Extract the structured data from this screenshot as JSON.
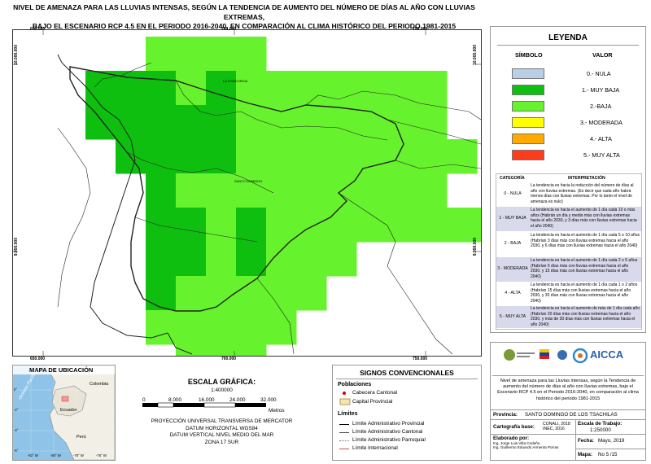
{
  "title": {
    "line1": "NIVEL DE AMENAZA PARA LAS LLUVIAS INTENSAS, SEGÚN LA TENDENCIA DE AUMENTO DEL NÚMERO DE DÍAS AL AÑO CON LLUVIAS EXTREMAS,",
    "line2": "BAJO EL ESCENARIO RCP 4.5 EN EL PERIODO 2016-2040, EN COMPARACIÓN AL CLIMA HISTÓRICO DEL PERIODO 1981-2015"
  },
  "map": {
    "x_ticks": [
      "650.000",
      "700.000",
      "750.000"
    ],
    "y_ticks": [
      "10.000.000",
      "9.950.000"
    ],
    "places": [
      "LA CONCORDIA",
      "SANTO DOMINGO"
    ],
    "colors": {
      "muy_baja": "#0fbf0f",
      "baja": "#66f22c",
      "boundary": "#222222"
    },
    "grid_cells": [
      {
        "row": 0,
        "col": 3,
        "level": "baja"
      },
      {
        "row": 0,
        "col": 4,
        "level": "baja"
      },
      {
        "row": 0,
        "col": 5,
        "level": "baja"
      },
      {
        "row": 0,
        "col": 6,
        "level": "baja"
      },
      {
        "row": 1,
        "col": 1,
        "level": "muy_baja"
      },
      {
        "row": 1,
        "col": 2,
        "level": "muy_baja"
      },
      {
        "row": 1,
        "col": 3,
        "level": "muy_baja"
      },
      {
        "row": 1,
        "col": 4,
        "level": "baja"
      },
      {
        "row": 1,
        "col": 5,
        "level": "muy_baja"
      },
      {
        "row": 1,
        "col": 6,
        "level": "baja"
      },
      {
        "row": 1,
        "col": 7,
        "level": "baja"
      },
      {
        "row": 1,
        "col": 8,
        "level": "baja"
      },
      {
        "row": 1,
        "col": 9,
        "level": "baja"
      },
      {
        "row": 1,
        "col": 10,
        "level": "baja"
      },
      {
        "row": 1,
        "col": 11,
        "level": "baja"
      },
      {
        "row": 1,
        "col": 12,
        "level": "baja"
      },
      {
        "row": 2,
        "col": 1,
        "level": "muy_baja"
      },
      {
        "row": 2,
        "col": 2,
        "level": "muy_baja"
      },
      {
        "row": 2,
        "col": 3,
        "level": "muy_baja"
      },
      {
        "row": 2,
        "col": 4,
        "level": "muy_baja"
      },
      {
        "row": 2,
        "col": 5,
        "level": "muy_baja"
      },
      {
        "row": 2,
        "col": 6,
        "level": "baja"
      },
      {
        "row": 2,
        "col": 7,
        "level": "baja"
      },
      {
        "row": 2,
        "col": 8,
        "level": "baja"
      },
      {
        "row": 2,
        "col": 9,
        "level": "baja"
      },
      {
        "row": 2,
        "col": 10,
        "level": "baja"
      },
      {
        "row": 2,
        "col": 11,
        "level": "baja"
      },
      {
        "row": 2,
        "col": 12,
        "level": "baja"
      },
      {
        "row": 3,
        "col": 2,
        "level": "muy_baja"
      },
      {
        "row": 3,
        "col": 3,
        "level": "muy_baja"
      },
      {
        "row": 3,
        "col": 4,
        "level": "muy_baja"
      },
      {
        "row": 3,
        "col": 5,
        "level": "muy_baja"
      },
      {
        "row": 3,
        "col": 6,
        "level": "baja"
      },
      {
        "row": 3,
        "col": 7,
        "level": "baja"
      },
      {
        "row": 3,
        "col": 8,
        "level": "baja"
      },
      {
        "row": 3,
        "col": 9,
        "level": "baja"
      },
      {
        "row": 3,
        "col": 10,
        "level": "baja"
      },
      {
        "row": 3,
        "col": 11,
        "level": "baja"
      },
      {
        "row": 3,
        "col": 12,
        "level": "baja"
      },
      {
        "row": 3,
        "col": 13,
        "level": "baja"
      },
      {
        "row": 4,
        "col": 3,
        "level": "muy_baja"
      },
      {
        "row": 4,
        "col": 4,
        "level": "baja"
      },
      {
        "row": 4,
        "col": 5,
        "level": "baja"
      },
      {
        "row": 4,
        "col": 6,
        "level": "baja"
      },
      {
        "row": 4,
        "col": 7,
        "level": "baja"
      },
      {
        "row": 4,
        "col": 8,
        "level": "baja"
      },
      {
        "row": 4,
        "col": 9,
        "level": "baja"
      },
      {
        "row": 4,
        "col": 10,
        "level": "baja"
      },
      {
        "row": 4,
        "col": 11,
        "level": "baja"
      },
      {
        "row": 4,
        "col": 12,
        "level": "baja"
      },
      {
        "row": 5,
        "col": 3,
        "level": "muy_baja"
      },
      {
        "row": 5,
        "col": 4,
        "level": "muy_baja"
      },
      {
        "row": 5,
        "col": 5,
        "level": "baja"
      },
      {
        "row": 5,
        "col": 6,
        "level": "muy_baja"
      },
      {
        "row": 5,
        "col": 7,
        "level": "baja"
      },
      {
        "row": 5,
        "col": 8,
        "level": "baja"
      },
      {
        "row": 5,
        "col": 9,
        "level": "baja"
      },
      {
        "row": 5,
        "col": 10,
        "level": "baja"
      },
      {
        "row": 5,
        "col": 11,
        "level": "baja"
      },
      {
        "row": 5,
        "col": 12,
        "level": "baja"
      },
      {
        "row": 5,
        "col": 13,
        "level": "baja"
      },
      {
        "row": 5,
        "col": 14,
        "level": "baja"
      },
      {
        "row": 6,
        "col": 3,
        "level": "muy_baja"
      },
      {
        "row": 6,
        "col": 4,
        "level": "muy_baja"
      },
      {
        "row": 6,
        "col": 5,
        "level": "baja"
      },
      {
        "row": 6,
        "col": 6,
        "level": "muy_baja"
      },
      {
        "row": 6,
        "col": 7,
        "level": "baja"
      },
      {
        "row": 6,
        "col": 8,
        "level": "baja"
      },
      {
        "row": 6,
        "col": 9,
        "level": "baja"
      },
      {
        "row": 7,
        "col": 3,
        "level": "muy_baja"
      },
      {
        "row": 7,
        "col": 4,
        "level": "baja"
      },
      {
        "row": 7,
        "col": 5,
        "level": "baja"
      },
      {
        "row": 7,
        "col": 6,
        "level": "baja"
      },
      {
        "row": 7,
        "col": 7,
        "level": "baja"
      },
      {
        "row": 7,
        "col": 8,
        "level": "baja"
      },
      {
        "row": 8,
        "col": 3,
        "level": "baja"
      },
      {
        "row": 8,
        "col": 4,
        "level": "baja"
      },
      {
        "row": 8,
        "col": 5,
        "level": "baja"
      },
      {
        "row": 8,
        "col": 6,
        "level": "baja"
      },
      {
        "row": 8,
        "col": 7,
        "level": "baja"
      },
      {
        "row": 9,
        "col": 4,
        "level": "baja"
      },
      {
        "row": 9,
        "col": 5,
        "level": "baja"
      },
      {
        "row": 9,
        "col": 6,
        "level": "baja"
      }
    ]
  },
  "legend": {
    "title": "LEYENDA",
    "col_symbol": "SÍMBOLO",
    "col_value": "VALOR",
    "items": [
      {
        "label": "0.- NULA",
        "color": "#b9cfe8"
      },
      {
        "label": "1.- MUY BAJA",
        "color": "#0fbf0f"
      },
      {
        "label": "2.-BAJA",
        "color": "#66f22c"
      },
      {
        "label": "3.- MODERADA",
        "color": "#ffff00"
      },
      {
        "label": "4.- ALTA",
        "color": "#ffaa00"
      },
      {
        "label": "5.- MUY ALTA",
        "color": "#ff3b1a"
      }
    ],
    "interp_header_cat": "CATEGORÍA",
    "interp_header_desc": "INTERPRETACIÓN",
    "interp": [
      {
        "cat": "0 - NULA",
        "desc": "La tendencia es hacia la reducción del número de días al año con lluvias extremas. (Es decir que cada año habrá menos días con lluvias extremas. Por lo tanto el nivel de amenaza es nulo)"
      },
      {
        "cat": "1 - MUY BAJA",
        "desc": "La tendencia es hacia el aumento de 1 día cada 10 o más años (Habrán un día y medio más con lluvias extremas hacia el año 2030, y 3 días más con lluvias extremas hacia el año 2040)"
      },
      {
        "cat": "2 - BAJA",
        "desc": "La tendencia es hacia el aumento de 1 día cada 5 o 10 años (Habrían 3 días más con lluvias extremas hacia el año 2030, y 6 días más con lluvias extremas hacia el año 2040)"
      },
      {
        "cat": "3 - MODERADA",
        "desc": "La tendencia es hacia el aumento de 1 día cada 2 o 5 años (Habrían 6 días más con lluvias extremas hacia el año 2030, y 15 días más con lluvias extremas hacia el año 2040)"
      },
      {
        "cat": "4 - ALTA",
        "desc": "La tendencia es hacia el aumento de 1 día cada 1 o 2 años (Habrían 15 días más con lluvias extremas hacia el año 2030, y 30 días más con lluvias extremas hacia el año 2040)"
      },
      {
        "cat": "5 - MUY ALTA",
        "desc": "La tendencia es hacia el aumento de más de 1 día cada año (Habrían 20 días más con lluvias extremas hacia el año 2030, y más de 30 días más con lluvias extremas hacia el año 2040)"
      }
    ]
  },
  "inset": {
    "title": "MAPA DE UBICACIÓN",
    "labels": {
      "colombia": "Colombia",
      "ecuador": "Ecuador",
      "peru": "Perú",
      "ocean": "Océano Pacífico"
    },
    "lon_ticks": [
      "-82° W",
      "-80° W",
      "-78° W",
      "-76° W"
    ],
    "lat_ticks": [
      "0°",
      "-2°",
      "-4°",
      "-6°"
    ]
  },
  "scale": {
    "title": "ESCALA GRÁFICA:",
    "ratio": "1:400000",
    "labels": [
      "0",
      "8.000",
      "16.000",
      "24.000",
      "32.000"
    ],
    "unit": "Metros",
    "projection": [
      "PROYECCIÓN UNIVERSAL TRANSVERSA DE MERCATOR",
      "DATUM HORIZONTAL WGS84",
      "DATUM VERTICAL NIVEL MEDIO DEL MAR",
      "ZONA 17 SUR"
    ]
  },
  "symbols": {
    "title": "SIGNOS CONVENCIONALES",
    "poblaciones": "Poblaciones",
    "cabecera_cantonal": "Cabecera Cantonal",
    "capital_provincial": "Capital Provincial",
    "limites": "Límites",
    "limits": [
      "Límite Administrativo Provincial",
      "Límite Administrativo Cantonal",
      "Límite Administrativo Parroquial",
      "Límite Internacional"
    ]
  },
  "info": {
    "logo_text": "AICCA",
    "description": "Nivel de amenaza para las Lluvias intensas, según la Tendencia de aumento del número de días al año con lluvias extremas, bajo el Escenario RCP 4.5 en el Periodo 2016-2040, en comparación al clima histórico del periodo 1981-2015",
    "provincia_label": "Provincia:",
    "provincia_value": "SANTO DOMINGO DE LOS TSACHILAS",
    "carto_label": "Cartografía base:",
    "carto_value": "CONALI, 2018 INEC, 2016",
    "escala_label": "Escala de Trabajo:",
    "escala_value": "1:250000",
    "elaborado_label": "Elaborado por:",
    "elaborado_1": "Ing. Jorge Luis Villa Cedeño",
    "elaborado_2": "Ing. Guillermo Eduardo Armenta Porras",
    "fecha_label": "Fecha:",
    "fecha_value": "Mayo, 2019",
    "mapa_label": "Mapa:",
    "mapa_value": "No 5 /15"
  }
}
